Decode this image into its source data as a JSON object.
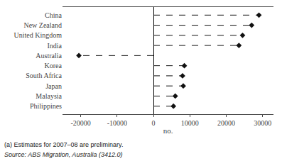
{
  "chart_data": {
    "type": "lollipop",
    "orientation": "horizontal",
    "categories": [
      "China",
      "New Zealand",
      "United Kingdom",
      "India",
      "Australia",
      "Korea",
      "South Africa",
      "Japan",
      "Malaysia",
      "Philippines"
    ],
    "values": [
      29000,
      27000,
      24500,
      23500,
      -20500,
      8500,
      8000,
      8200,
      6000,
      5500
    ],
    "xlim": [
      -25000,
      33000
    ],
    "xticks": [
      -20000,
      -10000,
      0,
      10000,
      20000,
      30000
    ],
    "xlabel": "no.",
    "color": "#111111",
    "marker": "diamond",
    "line_style": "dashed",
    "grid": false,
    "annotations": [
      "(a) Estimates for 2007–08 are preliminary.",
      "Source: ABS Migration, Australia (3412.0)"
    ]
  }
}
